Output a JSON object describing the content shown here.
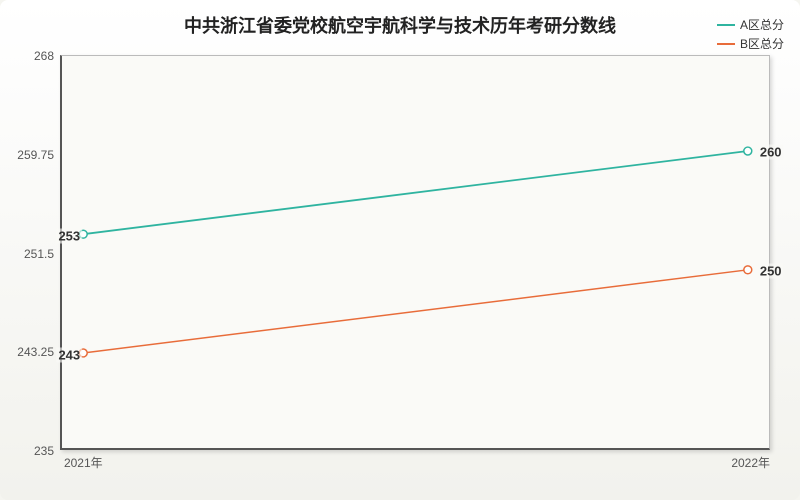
{
  "chart": {
    "type": "line",
    "title": "中共浙江省委党校航空宇航科学与技术历年考研分数线",
    "title_fontsize": 18,
    "background_gradient": [
      "#ffffff",
      "#f2f2ed"
    ],
    "plot_background": "#fafaf7",
    "axis_color": "#555555",
    "label_fontsize": 12,
    "data_label_fontsize": 13,
    "x": {
      "categories": [
        "2021年",
        "2022年"
      ],
      "positions_pct": [
        3,
        97
      ]
    },
    "y": {
      "min": 235,
      "max": 268,
      "ticks": [
        235,
        243.25,
        251.5,
        259.75,
        268
      ]
    },
    "series": [
      {
        "name": "A区总分",
        "color": "#2fb4a0",
        "line_width": 1.8,
        "values": [
          253,
          260
        ],
        "marker": "circle",
        "marker_size": 4,
        "marker_fill": "#ffffff"
      },
      {
        "name": "B区总分",
        "color": "#e86c3a",
        "line_width": 1.5,
        "values": [
          243,
          250
        ],
        "marker": "circle",
        "marker_size": 4,
        "marker_fill": "#ffffff"
      }
    ],
    "legend": {
      "position": "top-right",
      "fontsize": 12
    }
  }
}
